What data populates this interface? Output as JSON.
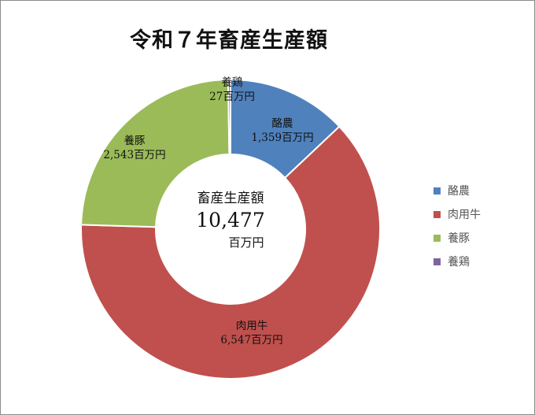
{
  "chart_data": {
    "type": "pie",
    "variant": "donut",
    "title": "令和７年畜産生産額",
    "center_label": {
      "title": "畜産生産額",
      "value": "10,477",
      "unit": "百万円"
    },
    "unit": "百万円",
    "total": 10477,
    "categories": [
      "酪農",
      "肉用牛",
      "養豚",
      "養鶏"
    ],
    "values": [
      1359,
      6547,
      2543,
      27
    ],
    "data_labels": [
      "1,359百万円",
      "6,547百万円",
      "2,543百万円",
      "27百万円"
    ],
    "colors": [
      "#4f81bd",
      "#c0504d",
      "#9bbb59",
      "#8064a2"
    ],
    "legend_position": "right"
  },
  "title": "令和７年畜産生産額",
  "center": {
    "title": "畜産生産額",
    "value": "10,477",
    "unit": "百万円"
  },
  "labels": [
    {
      "name": "酪農",
      "value": "1,359百万円"
    },
    {
      "name": "肉用牛",
      "value": "6,547百万円"
    },
    {
      "name": "養豚",
      "value": "2,543百万円"
    },
    {
      "name": "養鶏",
      "value": "27百万円"
    }
  ],
  "legend": [
    {
      "label": "酪農",
      "color": "#4f81bd"
    },
    {
      "label": "肉用牛",
      "color": "#c0504d"
    },
    {
      "label": "養豚",
      "color": "#9bbb59"
    },
    {
      "label": "養鶏",
      "color": "#8064a2"
    }
  ]
}
